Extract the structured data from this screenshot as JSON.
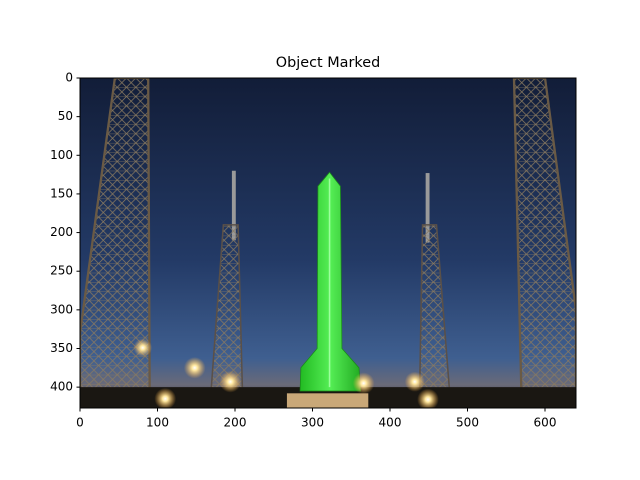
{
  "chart_data": {
    "type": "image",
    "title": "Object Marked",
    "xlim": [
      0,
      640
    ],
    "ylim": [
      0,
      427
    ],
    "y_inverted": true,
    "xticks": [
      0,
      100,
      200,
      300,
      400,
      500,
      600
    ],
    "yticks": [
      0,
      50,
      100,
      150,
      200,
      250,
      300,
      350,
      400
    ]
  }
}
